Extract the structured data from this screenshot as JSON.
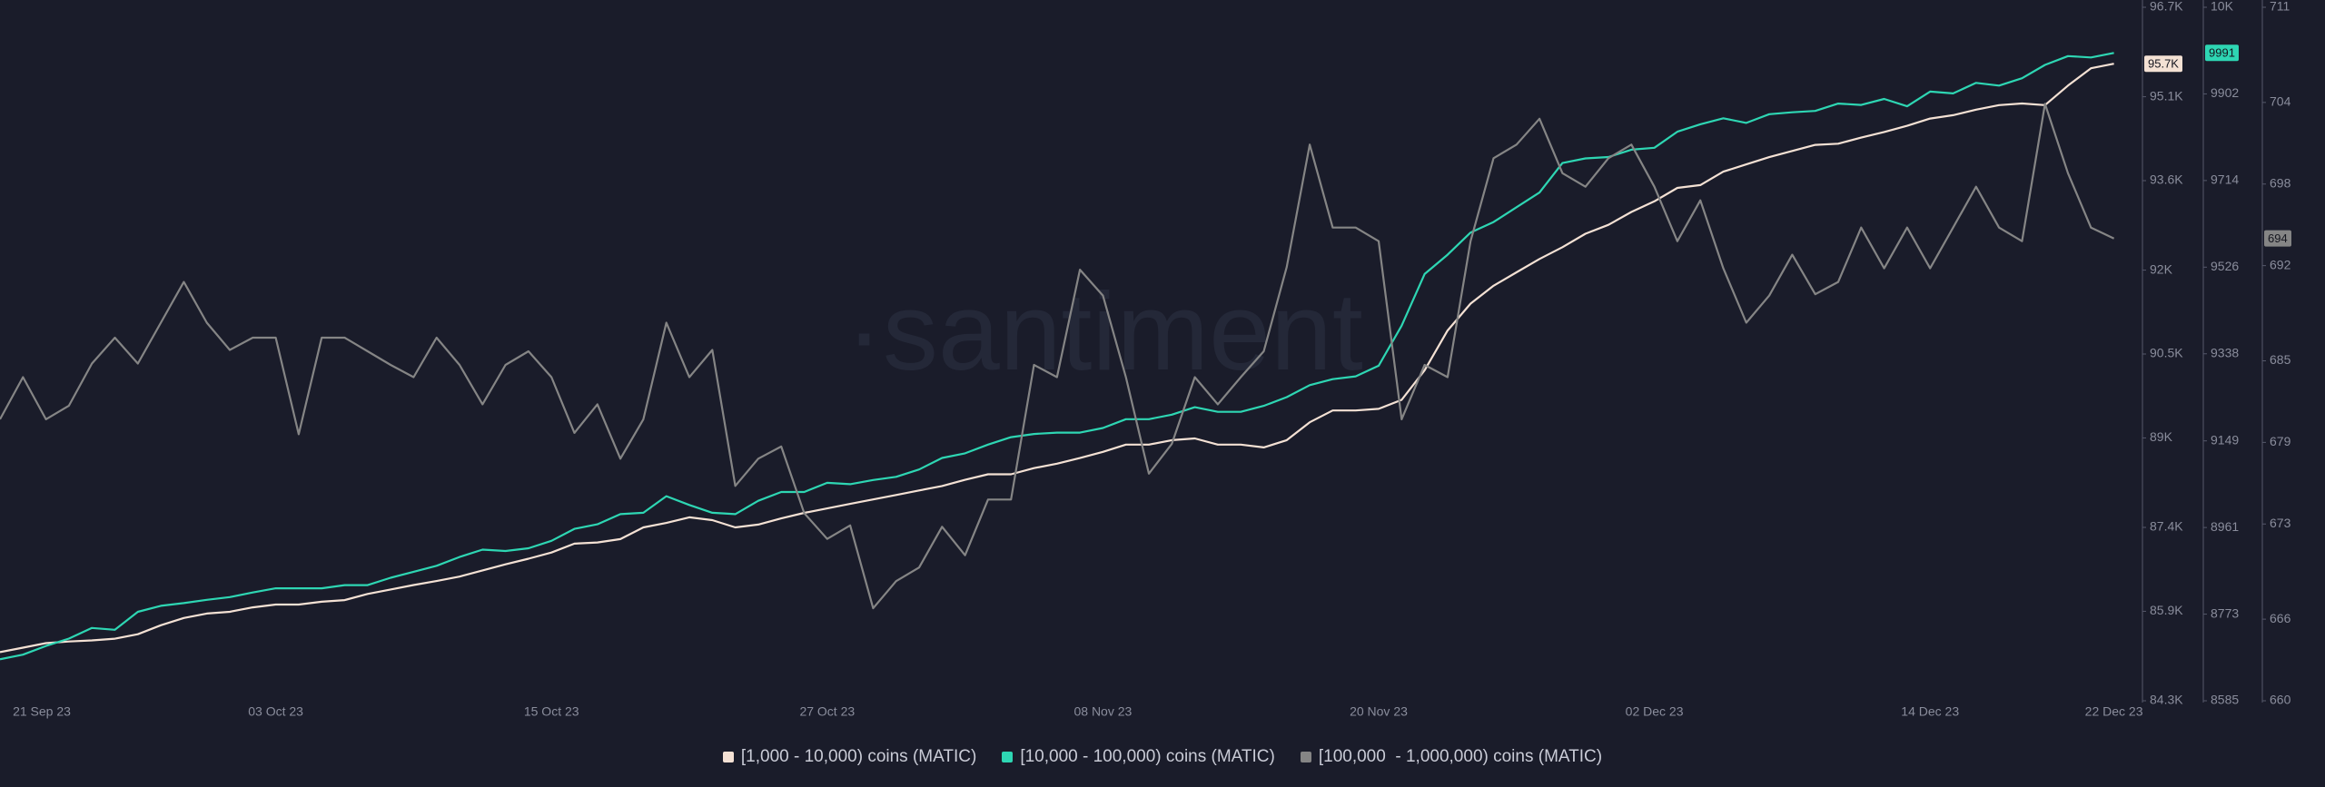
{
  "chart_data": {
    "type": "line",
    "watermark": "·santiment",
    "grid": false,
    "categories": [
      "21 Sep 23",
      null,
      null,
      null,
      null,
      null,
      null,
      null,
      null,
      null,
      null,
      null,
      "03 Oct 23",
      null,
      null,
      null,
      null,
      null,
      null,
      null,
      null,
      null,
      null,
      null,
      "15 Oct 23",
      null,
      null,
      null,
      null,
      null,
      null,
      null,
      null,
      null,
      null,
      null,
      "27 Oct 23",
      null,
      null,
      null,
      null,
      null,
      null,
      null,
      null,
      null,
      null,
      null,
      "08 Nov 23",
      null,
      null,
      null,
      null,
      null,
      null,
      null,
      null,
      null,
      null,
      null,
      "20 Nov 23",
      null,
      null,
      null,
      null,
      null,
      null,
      null,
      null,
      null,
      null,
      null,
      "02 Dec 23",
      null,
      null,
      null,
      null,
      null,
      null,
      null,
      null,
      null,
      null,
      null,
      "14 Dec 23",
      null,
      null,
      null,
      null,
      null,
      null,
      null,
      "22 Dec 23"
    ],
    "series": [
      {
        "name": "[1,000 - 10,000) coins (MATIC)",
        "color": "#f4e1d4",
        "axis": "y",
        "values": [
          85170,
          85250,
          85330,
          85360,
          85380,
          85410,
          85490,
          85650,
          85780,
          85860,
          85890,
          85970,
          86020,
          86020,
          86070,
          86100,
          86210,
          86290,
          86370,
          86440,
          86520,
          86630,
          86740,
          86840,
          86950,
          87110,
          87130,
          87190,
          87400,
          87480,
          87580,
          87530,
          87400,
          87450,
          87560,
          87660,
          87740,
          87820,
          87900,
          87980,
          88060,
          88140,
          88250,
          88350,
          88350,
          88460,
          88540,
          88640,
          88750,
          88880,
          88880,
          88960,
          88990,
          88880,
          88880,
          88830,
          88960,
          89280,
          89490,
          89490,
          89520,
          89680,
          90210,
          90920,
          91400,
          91720,
          91960,
          92200,
          92410,
          92650,
          92810,
          93040,
          93230,
          93470,
          93520,
          93760,
          93890,
          94020,
          94130,
          94240,
          94260,
          94370,
          94470,
          94580,
          94710,
          94770,
          94870,
          94950,
          94980,
          94950,
          95300,
          95610,
          95690
        ],
        "value_labels": [
          null,
          null,
          null,
          null,
          null,
          null,
          null,
          null,
          null,
          null,
          null,
          null,
          null,
          null,
          null,
          null,
          null,
          null,
          null,
          null,
          null,
          null,
          null,
          null,
          null,
          null,
          null,
          null,
          null,
          null,
          null,
          null,
          null,
          null,
          null,
          null,
          null,
          null,
          null,
          null,
          null,
          null,
          null,
          null,
          null,
          null,
          null,
          null,
          null,
          null,
          null,
          null,
          null,
          null,
          null,
          null,
          null,
          null,
          null,
          null,
          null,
          null,
          null,
          null,
          null,
          null,
          null,
          null,
          null,
          null,
          null,
          null,
          null,
          null,
          null,
          null,
          null,
          null,
          null,
          null,
          null,
          null,
          null,
          null,
          null,
          null,
          null,
          null,
          null,
          null,
          null,
          null,
          "95.7K"
        ]
      },
      {
        "name": "[10,000 - 100,000) coins (MATIC)",
        "color": "#2ed6b3",
        "axis": "y2",
        "values": [
          8675,
          8685,
          8704,
          8720,
          8743,
          8739,
          8778,
          8791,
          8797,
          8804,
          8810,
          8820,
          8829,
          8829,
          8829,
          8836,
          8836,
          8852,
          8865,
          8878,
          8897,
          8913,
          8910,
          8916,
          8932,
          8958,
          8968,
          8990,
          8993,
          9029,
          9010,
          8993,
          8990,
          9019,
          9038,
          9038,
          9058,
          9055,
          9064,
          9071,
          9087,
          9112,
          9122,
          9141,
          9157,
          9164,
          9167,
          9167,
          9177,
          9196,
          9196,
          9206,
          9222,
          9212,
          9212,
          9225,
          9244,
          9270,
          9283,
          9289,
          9312,
          9399,
          9511,
          9553,
          9601,
          9624,
          9656,
          9688,
          9752,
          9762,
          9765,
          9781,
          9785,
          9820,
          9836,
          9849,
          9839,
          9858,
          9862,
          9865,
          9881,
          9878,
          9891,
          9875,
          9907,
          9903,
          9926,
          9920,
          9936,
          9965,
          9984,
          9981,
          9991
        ]
      },
      {
        "name": "[100,000  - 1,000,000) coins (MATIC)",
        "color": "#858585",
        "axis": "y3",
        "values": [
          680.7,
          683.8,
          680.7,
          681.7,
          684.8,
          686.7,
          684.8,
          687.8,
          690.8,
          687.8,
          685.8,
          686.7,
          686.7,
          679.6,
          686.7,
          686.7,
          685.7,
          684.7,
          683.8,
          686.7,
          684.7,
          681.8,
          684.7,
          685.7,
          683.8,
          679.7,
          681.8,
          677.8,
          680.7,
          687.8,
          683.8,
          685.8,
          675.8,
          677.8,
          678.7,
          673.8,
          671.9,
          672.9,
          666.8,
          668.8,
          669.8,
          672.8,
          670.7,
          674.8,
          674.8,
          684.7,
          683.8,
          691.7,
          689.8,
          683.8,
          676.7,
          678.9,
          683.8,
          681.8,
          683.8,
          685.7,
          691.9,
          700.9,
          694.8,
          694.8,
          693.8,
          680.7,
          684.7,
          683.8,
          693.8,
          699.9,
          700.9,
          702.8,
          698.8,
          697.8,
          699.9,
          700.9,
          697.8,
          693.8,
          696.8,
          691.8,
          687.8,
          689.8,
          692.8,
          689.9,
          690.8,
          694.8,
          691.8,
          694.8,
          691.8,
          694.8,
          697.8,
          694.8,
          693.8,
          703.9,
          698.8,
          694.8,
          694
        ]
      }
    ],
    "ylim": [
      84300,
      96700
    ],
    "yticks": [
      {
        "value": 84300,
        "label": "84.3K"
      },
      {
        "value": 85900,
        "label": "85.9K"
      },
      {
        "value": 87400,
        "label": "87.4K"
      },
      {
        "value": 89000,
        "label": "89K"
      },
      {
        "value": 90500,
        "label": "90.5K"
      },
      {
        "value": 92000,
        "label": "92K"
      },
      {
        "value": 93600,
        "label": "93.6K"
      },
      {
        "value": 95100,
        "label": "95.1K"
      },
      {
        "value": 96700,
        "label": "96.7K"
      }
    ],
    "y2lim": [
      8585,
      10090
    ],
    "y2ticks": [
      8585,
      8773,
      8961,
      9149,
      9338,
      9526,
      9714,
      9902,
      {
        "value": 10090,
        "label": "10K"
      }
    ],
    "y3lim": [
      660,
      711
    ],
    "y3ticks": [
      660,
      666,
      673,
      679,
      685,
      692,
      698,
      704,
      711
    ]
  }
}
